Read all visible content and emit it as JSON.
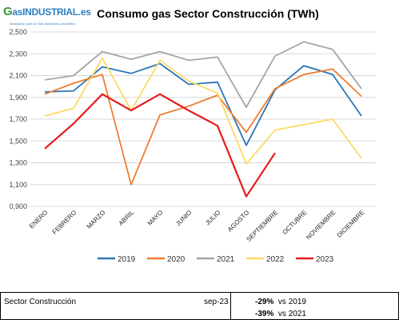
{
  "logo": {
    "brand": "GasINDUSTRIAL.es",
    "brand_main": "asINDUSTRIAL",
    "brand_g": "G",
    "brand_tld": ".es",
    "tagline": "Asociación para un Gas Industrial Competitivo"
  },
  "chart_data": {
    "type": "line",
    "title": "Consumo gas Sector Construcción (TWh)",
    "xlabel": "",
    "ylabel": "",
    "categories": [
      "ENERO",
      "FEBRERO",
      "MARZO",
      "ABRIL",
      "MAYO",
      "JUNIO",
      "JULIO",
      "AGOSTO",
      "SEPTIEMBRE",
      "OCTUBRE",
      "NOVIEMBRE",
      "DICIEMBRE"
    ],
    "ylim": [
      0.9,
      2.5
    ],
    "yticks": [
      "0,900",
      "1,100",
      "1,300",
      "1,500",
      "1,700",
      "1,900",
      "2,100",
      "2,300",
      "2,500"
    ],
    "grid": true,
    "legend": "bottom",
    "series": [
      {
        "name": "2019",
        "color": "#2e75b6",
        "values": [
          1.95,
          1.96,
          2.18,
          2.12,
          2.21,
          2.02,
          2.04,
          1.46,
          1.97,
          2.19,
          2.11,
          1.73
        ]
      },
      {
        "name": "2020",
        "color": "#ed7d31",
        "values": [
          1.93,
          2.03,
          2.11,
          1.1,
          1.74,
          1.82,
          1.92,
          1.58,
          1.98,
          2.11,
          2.16,
          1.91
        ]
      },
      {
        "name": "2021",
        "color": "#a5a5a5",
        "values": [
          2.06,
          2.1,
          2.32,
          2.25,
          2.32,
          2.24,
          2.27,
          1.81,
          2.28,
          2.41,
          2.34,
          1.98
        ]
      },
      {
        "name": "2022",
        "color": "#ffd966",
        "values": [
          1.73,
          1.8,
          2.26,
          1.78,
          2.24,
          2.05,
          1.94,
          1.29,
          1.6,
          1.65,
          1.7,
          1.34
        ]
      },
      {
        "name": "2023",
        "color": "#e51b1b",
        "values": [
          1.43,
          1.66,
          1.93,
          1.78,
          1.93,
          1.78,
          1.64,
          0.99,
          1.39,
          null,
          null,
          null
        ]
      }
    ]
  },
  "summary": {
    "sector": "Sector Construcción",
    "period": "sep-23",
    "comparisons": [
      {
        "pct": "-29%",
        "label": "vs 2019"
      },
      {
        "pct": "-39%",
        "label": "vs 2021"
      }
    ]
  }
}
